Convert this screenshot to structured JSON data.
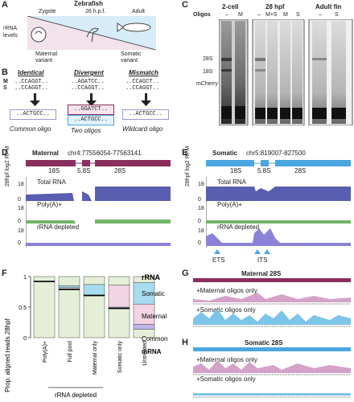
{
  "panelA": {
    "label": "A",
    "species": "Zebrafish",
    "zygote": "Zygote",
    "hpf": "26 h.p.f.",
    "adult": "Adult",
    "ylabel_line1": "rRNA",
    "ylabel_line2": "levels",
    "maternal_line1": "Maternal",
    "maternal_line2": "variant",
    "somatic_line1": "Somatic",
    "somatic_line2": "variant"
  },
  "panelB": {
    "label": "B",
    "row_m": "M",
    "row_s": "S",
    "identical": "Identical",
    "divergent": "Divergent",
    "mismatch": "Mismatch",
    "id_m": "..CCAGGT..",
    "id_s": "..CCAGGT..",
    "div_m": "..AGATCC..",
    "div_s": "..CCAGGT..",
    "mis_m": "..CCAGCT..",
    "mis_s": "..CCAGGT..",
    "oligo_common": "..ACTGCC..",
    "oligo_div1": "..GGATCT..",
    "oligo_div2": "..ACTGCC..",
    "oligo_wild": "..ACTGCC..",
    "cap_common": "Common oligo",
    "cap_two": "Two oligos",
    "cap_wild": "Wildcard oligo"
  },
  "panelC": {
    "label": "C",
    "h1": "2-cell",
    "h2": "28 hpf",
    "h3": "Adult fin",
    "oligos": "Oligos",
    "l1": [
      "–",
      "M"
    ],
    "l2": [
      "–",
      "M+S",
      "M",
      "S"
    ],
    "l3": [
      "–",
      "S"
    ],
    "b28": "28S",
    "b18": "18S",
    "bmch": "mCherry"
  },
  "panelD": {
    "label": "D",
    "title": "Maternal",
    "coord": "chr4:77556054-77563141",
    "r18": "18S",
    "r58": "5.8S",
    "r28": "28S",
    "tr1": "Total RNA",
    "tr2": "Poly(A)+",
    "tr3": "rRNA depleted",
    "ylab": "28hpf log2 RPM",
    "tick_hi": "18",
    "tick_lo": "0"
  },
  "panelE": {
    "label": "E",
    "title": "Somatic",
    "coord": "chr5:819007-827500",
    "r18": "18S",
    "r58": "5.8S",
    "r28": "28S",
    "tr1": "Total RNA",
    "tr2": "Poly(A)+",
    "tr3": "rRNA depleted",
    "ets": "ETS",
    "its": "ITS",
    "ylab": "28hpf log2 RPM",
    "tick_hi": "18",
    "tick_lo": "0"
  },
  "panelF": {
    "label": "F",
    "legend_title": "rRNA",
    "leg_somatic": "Somatic",
    "leg_maternal": "Maternal",
    "leg_common": "Common",
    "leg_mrna": "mRNA",
    "depleted_label": "rRNA depleted"
  },
  "panelG": {
    "label": "G",
    "title": "Maternal 28S",
    "t1": "+Maternal oligos only",
    "t2": "+Somatic oligos only"
  },
  "panelH": {
    "label": "H",
    "title": "Somatic 28S",
    "t1": "+Maternal oligos only",
    "t2": "+Somatic oligos only"
  },
  "colors": {
    "maternal": "#8b2e5e",
    "somatic": "#4aa6e0",
    "total": "#5a5eb0",
    "polya": "#72b46a",
    "depleted": "#8a82d8",
    "stack_mrna": "#e5efd8",
    "stack_common": "#c0b4ea",
    "stack_maternal": "#f2d4e4",
    "stack_somatic": "#a8dcf0",
    "pink_track": "#d4a2c8",
    "blue_track": "#7cc4e8"
  },
  "chart_data": {
    "type": "bar",
    "ylabel": "Prop. aligned reads 28hpf",
    "ylim": [
      0,
      1
    ],
    "yticks": [
      "0",
      "0.5",
      "1"
    ],
    "categories": [
      "Poly(A)+",
      "Full pool",
      "Maternal only",
      "Somatic only",
      "Untreated"
    ],
    "stacked": true,
    "series": [
      {
        "name": "mRNA",
        "values": [
          0.92,
          0.79,
          0.69,
          0.48,
          0.14
        ]
      },
      {
        "name": "Common",
        "values": [
          0.0,
          0.01,
          0.01,
          0.02,
          0.08
        ]
      },
      {
        "name": "Maternal",
        "values": [
          0.0,
          0.02,
          0.0,
          0.36,
          0.33
        ]
      },
      {
        "name": "Somatic",
        "values": [
          0.0,
          0.03,
          0.17,
          0.0,
          0.35
        ]
      }
    ],
    "lines": [
      0.92,
      0.79,
      0.69,
      0.48,
      0.0
    ]
  }
}
